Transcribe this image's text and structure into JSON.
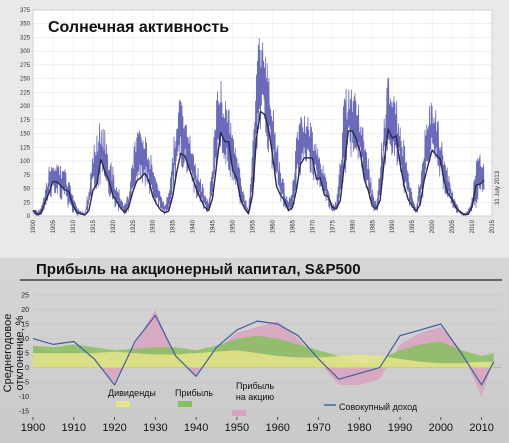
{
  "chart_data": [
    {
      "type": "line",
      "title": "Солнечная активность",
      "date_label": "31 July 2013",
      "x_ticks": [
        "1900",
        "1905",
        "1910",
        "1915",
        "1920",
        "1925",
        "1930",
        "1935",
        "1940",
        "1945",
        "1950",
        "1955",
        "1960",
        "1965",
        "1970",
        "1975",
        "1980",
        "1985",
        "1990",
        "1995",
        "2000",
        "2005",
        "2010",
        "2015"
      ],
      "y_ticks": [
        "0",
        "25",
        "50",
        "75",
        "100",
        "125",
        "150",
        "175",
        "200",
        "225",
        "250",
        "275",
        "300",
        "325",
        "350",
        "375"
      ],
      "xlim": [
        1900,
        2015
      ],
      "ylim": [
        0,
        375
      ],
      "colors": {
        "monthly": "#6a6aba",
        "smoothed": "#2a2a4a"
      },
      "grid": true,
      "series": [
        {
          "role": "monthly sunspot number (band)",
          "x": [
            1900,
            1901,
            1902,
            1903,
            1904,
            1905,
            1906,
            1907,
            1908,
            1909,
            1910,
            1911,
            1912,
            1913,
            1914,
            1915,
            1916,
            1917,
            1918,
            1919,
            1920,
            1921,
            1922,
            1923,
            1924,
            1925,
            1926,
            1927,
            1928,
            1929,
            1930,
            1931,
            1932,
            1933,
            1934,
            1935,
            1936,
            1937,
            1938,
            1939,
            1940,
            1941,
            1942,
            1943,
            1944,
            1945,
            1946,
            1947,
            1948,
            1949,
            1950,
            1951,
            1952,
            1953,
            1954,
            1955,
            1956,
            1957,
            1958,
            1959,
            1960,
            1961,
            1962,
            1963,
            1964,
            1965,
            1966,
            1967,
            1968,
            1969,
            1970,
            1971,
            1972,
            1973,
            1974,
            1975,
            1976,
            1977,
            1978,
            1979,
            1980,
            1981,
            1982,
            1983,
            1984,
            1985,
            1986,
            1987,
            1988,
            1989,
            1990,
            1991,
            1992,
            1993,
            1994,
            1995,
            1996,
            1997,
            1998,
            1999,
            2000,
            2001,
            2002,
            2003,
            2004,
            2005,
            2006,
            2007,
            2008,
            2009,
            2010,
            2011,
            2012,
            2013
          ],
          "y_min": [
            0,
            0,
            0,
            3,
            25,
            40,
            38,
            30,
            25,
            12,
            5,
            0,
            0,
            0,
            5,
            35,
            45,
            60,
            50,
            30,
            18,
            10,
            5,
            2,
            5,
            30,
            45,
            60,
            55,
            45,
            25,
            15,
            8,
            3,
            5,
            30,
            70,
            90,
            80,
            60,
            45,
            25,
            15,
            8,
            3,
            20,
            80,
            110,
            100,
            80,
            60,
            35,
            20,
            8,
            2,
            30,
            100,
            150,
            140,
            110,
            80,
            40,
            25,
            10,
            5,
            10,
            35,
            70,
            80,
            75,
            70,
            55,
            45,
            25,
            15,
            5,
            5,
            20,
            60,
            100,
            110,
            100,
            80,
            50,
            30,
            12,
            5,
            15,
            55,
            100,
            110,
            90,
            70,
            40,
            20,
            8,
            3,
            10,
            35,
            70,
            90,
            80,
            60,
            40,
            25,
            12,
            5,
            3,
            0,
            0,
            3,
            15,
            30,
            35
          ],
          "y_max": [
            20,
            10,
            15,
            45,
            90,
            110,
            105,
            95,
            90,
            65,
            40,
            15,
            10,
            5,
            60,
            130,
            150,
            185,
            160,
            120,
            90,
            60,
            40,
            20,
            50,
            120,
            160,
            180,
            150,
            125,
            100,
            70,
            50,
            25,
            45,
            130,
            190,
            230,
            200,
            175,
            140,
            100,
            70,
            45,
            30,
            110,
            230,
            250,
            230,
            200,
            160,
            120,
            80,
            40,
            15,
            120,
            280,
            355,
            320,
            260,
            210,
            150,
            100,
            55,
            30,
            55,
            150,
            200,
            190,
            180,
            165,
            140,
            110,
            85,
            55,
            20,
            30,
            120,
            230,
            250,
            235,
            220,
            195,
            155,
            110,
            50,
            30,
            90,
            220,
            255,
            230,
            215,
            180,
            140,
            85,
            40,
            15,
            80,
            150,
            200,
            215,
            190,
            160,
            120,
            85,
            50,
            25,
            10,
            5,
            10,
            40,
            100,
            120,
            120
          ]
        },
        {
          "role": "smoothed sunspot number",
          "x": [
            1900,
            1901,
            1902,
            1903,
            1904,
            1905,
            1906,
            1907,
            1908,
            1909,
            1910,
            1911,
            1912,
            1913,
            1914,
            1915,
            1916,
            1917,
            1918,
            1919,
            1920,
            1921,
            1922,
            1923,
            1924,
            1925,
            1926,
            1927,
            1928,
            1929,
            1930,
            1931,
            1932,
            1933,
            1934,
            1935,
            1936,
            1937,
            1938,
            1939,
            1940,
            1941,
            1942,
            1943,
            1944,
            1945,
            1946,
            1947,
            1948,
            1949,
            1950,
            1951,
            1952,
            1953,
            1954,
            1955,
            1956,
            1957,
            1958,
            1959,
            1960,
            1961,
            1962,
            1963,
            1964,
            1965,
            1966,
            1967,
            1968,
            1969,
            1970,
            1971,
            1972,
            1973,
            1974,
            1975,
            1976,
            1977,
            1978,
            1979,
            1980,
            1981,
            1982,
            1983,
            1984,
            1985,
            1986,
            1987,
            1988,
            1989,
            1990,
            1991,
            1992,
            1993,
            1994,
            1995,
            1996,
            1997,
            1998,
            1999,
            2000,
            2001,
            2002,
            2003,
            2004,
            2005,
            2006,
            2007,
            2008,
            2009,
            2010,
            2011,
            2012,
            2013
          ],
          "y": [
            10,
            3,
            5,
            25,
            42,
            63,
            62,
            55,
            48,
            44,
            19,
            6,
            4,
            2,
            10,
            47,
            58,
            104,
            81,
            64,
            38,
            26,
            14,
            6,
            17,
            44,
            64,
            70,
            78,
            65,
            36,
            21,
            11,
            6,
            9,
            36,
            80,
            114,
            110,
            89,
            68,
            48,
            31,
            16,
            10,
            33,
            93,
            152,
            136,
            135,
            84,
            69,
            31,
            14,
            4,
            38,
            142,
            190,
            185,
            159,
            112,
            54,
            38,
            28,
            10,
            15,
            47,
            94,
            106,
            106,
            105,
            67,
            69,
            38,
            35,
            16,
            13,
            28,
            93,
            155,
            155,
            140,
            116,
            67,
            46,
            18,
            13,
            29,
            100,
            158,
            142,
            146,
            94,
            55,
            30,
            18,
            9,
            21,
            64,
            93,
            120,
            111,
            104,
            64,
            40,
            30,
            15,
            8,
            3,
            3,
            16,
            56,
            58,
            65
          ]
        }
      ]
    },
    {
      "type": "line",
      "title": "Прибыль на акционерный капитал, S&P500",
      "ylabel": "Среднегодовое отклонение, %",
      "x_ticks": [
        "1900",
        "1910",
        "1920",
        "1930",
        "1940",
        "1950",
        "1960",
        "1970",
        "1980",
        "1990",
        "2000",
        "2010"
      ],
      "y_ticks": [
        "25",
        "20",
        "15",
        "10",
        "5",
        "0",
        "-5",
        "-10",
        "-15"
      ],
      "xlim": [
        1900,
        2015
      ],
      "ylim": [
        -17,
        25
      ],
      "colors": {
        "dividends": "#e8e48a",
        "profit": "#88c060",
        "eps": "#d9a3c0",
        "total": "#3b5fa0"
      },
      "legend": [
        {
          "name": "Дивиденды"
        },
        {
          "name": "Прибыль"
        },
        {
          "name": "Прибыль на акцию"
        },
        {
          "name": "Совокупный доход"
        }
      ],
      "series": [
        {
          "name": "Дивиденды",
          "x": [
            1900,
            1905,
            1910,
            1915,
            1920,
            1925,
            1930,
            1935,
            1940,
            1945,
            1950,
            1955,
            1960,
            1965,
            1970,
            1975,
            1980,
            1985,
            1990,
            1995,
            2000,
            2005,
            2010,
            2013
          ],
          "y": [
            5,
            5,
            5,
            5,
            5.5,
            5,
            4.5,
            4.5,
            5,
            5.5,
            6,
            5,
            4,
            3.5,
            3.5,
            4,
            4.5,
            4,
            3,
            2,
            1.5,
            1.5,
            2,
            2
          ]
        },
        {
          "name": "Прибыль",
          "x": [
            1900,
            1905,
            1910,
            1915,
            1920,
            1925,
            1930,
            1935,
            1940,
            1945,
            1950,
            1955,
            1960,
            1965,
            1970,
            1975,
            1980,
            1985,
            1990,
            1995,
            2000,
            2005,
            2010,
            2013
          ],
          "y": [
            7.5,
            7,
            8,
            7,
            6,
            6.5,
            7,
            7,
            6,
            7.5,
            10,
            11,
            10,
            8,
            6,
            4,
            1,
            3,
            6,
            8,
            9,
            6,
            4,
            5
          ]
        },
        {
          "name": "Прибыль на акцию",
          "x": [
            1900,
            1905,
            1910,
            1915,
            1920,
            1925,
            1930,
            1935,
            1940,
            1945,
            1950,
            1955,
            1960,
            1965,
            1970,
            1975,
            1980,
            1985,
            1990,
            1995,
            2000,
            2005,
            2010,
            2013
          ],
          "y": [
            7,
            5,
            6,
            2,
            -5,
            8,
            20,
            3,
            -3,
            6,
            12,
            14,
            16,
            10,
            2,
            -6,
            -6,
            -4,
            8,
            12,
            14,
            6,
            -10,
            3
          ]
        },
        {
          "name": "Совокупный доход",
          "x": [
            1900,
            1905,
            1910,
            1915,
            1920,
            1925,
            1930,
            1935,
            1940,
            1945,
            1950,
            1955,
            1960,
            1965,
            1970,
            1975,
            1980,
            1985,
            1990,
            1995,
            2000,
            2005,
            2010,
            2013
          ],
          "y": [
            10,
            8,
            9,
            3,
            -6,
            9,
            18,
            4,
            -3,
            7,
            13,
            16,
            15,
            11,
            3,
            -4,
            -2,
            0,
            11,
            13,
            15,
            5,
            -6,
            2
          ]
        }
      ]
    }
  ]
}
